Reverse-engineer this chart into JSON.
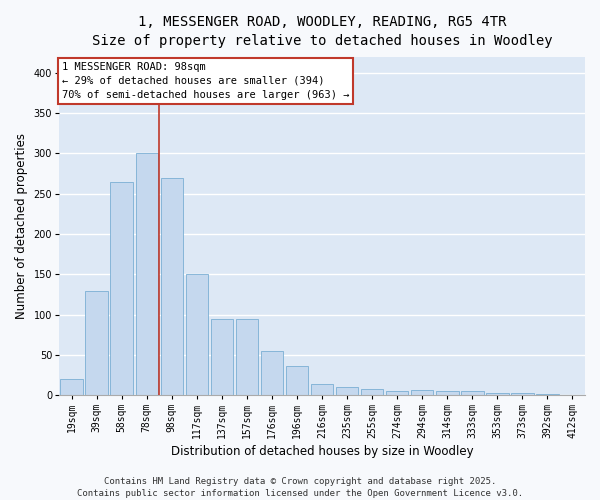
{
  "title_line1": "1, MESSENGER ROAD, WOODLEY, READING, RG5 4TR",
  "title_line2": "Size of property relative to detached houses in Woodley",
  "xlabel": "Distribution of detached houses by size in Woodley",
  "ylabel": "Number of detached properties",
  "categories": [
    "19sqm",
    "39sqm",
    "58sqm",
    "78sqm",
    "98sqm",
    "117sqm",
    "137sqm",
    "157sqm",
    "176sqm",
    "196sqm",
    "216sqm",
    "235sqm",
    "255sqm",
    "274sqm",
    "294sqm",
    "314sqm",
    "333sqm",
    "353sqm",
    "373sqm",
    "392sqm",
    "412sqm"
  ],
  "values": [
    20,
    130,
    265,
    300,
    270,
    150,
    95,
    95,
    55,
    37,
    14,
    10,
    8,
    5,
    7,
    5,
    5,
    3,
    3,
    2,
    1
  ],
  "bar_color": "#c5d8ee",
  "bar_edge_color": "#7bafd4",
  "vline_x_index": 4,
  "vline_color": "#c0392b",
  "annotation_text": "1 MESSENGER ROAD: 98sqm\n← 29% of detached houses are smaller (394)\n70% of semi-detached houses are larger (963) →",
  "annotation_box_color": "#c0392b",
  "annotation_fontsize": 7.5,
  "ylim": [
    0,
    420
  ],
  "yticks": [
    0,
    50,
    100,
    150,
    200,
    250,
    300,
    350,
    400
  ],
  "background_color": "#dde8f5",
  "grid_color": "#ffffff",
  "footer_text": "Contains HM Land Registry data © Crown copyright and database right 2025.\nContains public sector information licensed under the Open Government Licence v3.0.",
  "title_fontsize": 10,
  "subtitle_fontsize": 9,
  "axis_label_fontsize": 8.5,
  "tick_fontsize": 7,
  "footer_fontsize": 6.5,
  "fig_width": 6.0,
  "fig_height": 5.0
}
